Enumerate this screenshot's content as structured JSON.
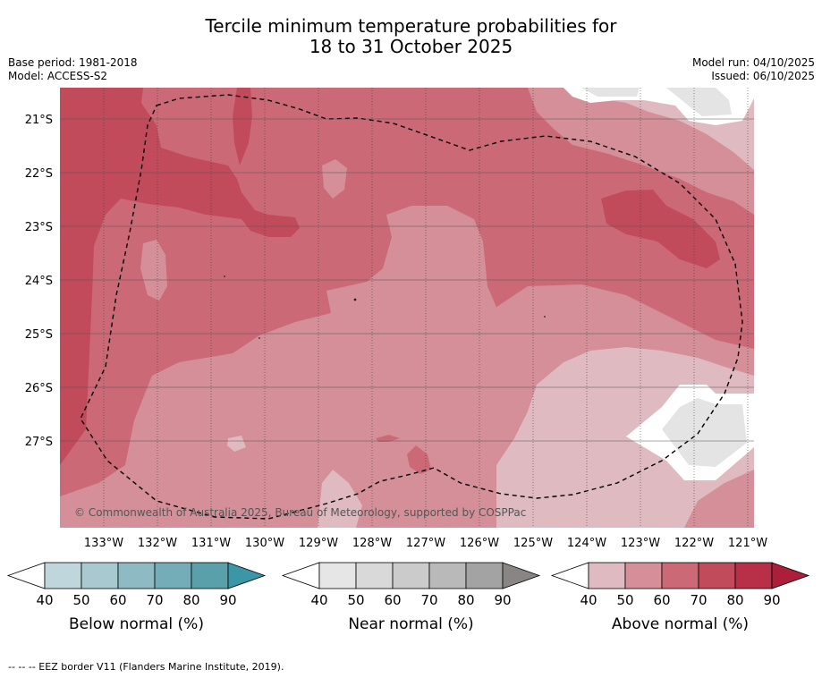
{
  "title": {
    "line1": "Tercile minimum temperature probabilities for",
    "line2": "18 to 31 October 2025"
  },
  "meta": {
    "base_period": "Base period: 1981-2018",
    "model": "Model: ACCESS-S2",
    "model_run": "Model run: 04/10/2025",
    "issued": "Issued: 06/10/2025"
  },
  "map": {
    "lat_labels": [
      "21°S",
      "22°S",
      "23°S",
      "24°S",
      "25°S",
      "26°S",
      "27°S"
    ],
    "lon_labels": [
      "133°W",
      "132°W",
      "131°W",
      "130°W",
      "129°W",
      "128°W",
      "127°W",
      "126°W",
      "125°W",
      "124°W",
      "123°W",
      "122°W",
      "121°W"
    ],
    "copyright": "© Commonwealth of Australia 2025, Bureau of Meteorology, supported by COSPPac",
    "colors": {
      "above_40": "#dfbac0",
      "above_50": "#d48f99",
      "above_60": "#cb6a76",
      "above_70": "#c24b5b",
      "near_40": "#e4e4e4",
      "background": "#ffffff"
    }
  },
  "legends": [
    {
      "label": "Below normal (%)",
      "ticks": [
        "40",
        "50",
        "60",
        "70",
        "80",
        "90"
      ],
      "colors": [
        "#bfd7dc",
        "#a8c9cf",
        "#8ebbc3",
        "#74adb7",
        "#59a0ab",
        "#3b97a6"
      ]
    },
    {
      "label": "Near normal (%)",
      "ticks": [
        "40",
        "50",
        "60",
        "70",
        "80",
        "90"
      ],
      "colors": [
        "#e6e6e6",
        "#d9d9d9",
        "#cbcbcb",
        "#b9b9b9",
        "#a3a3a3",
        "#8a8585"
      ]
    },
    {
      "label": "Above normal (%)",
      "ticks": [
        "40",
        "50",
        "60",
        "70",
        "80",
        "90"
      ],
      "colors": [
        "#dfbac0",
        "#d48f99",
        "#cb6a76",
        "#c24b5b",
        "#b83048",
        "#ac1f3a"
      ]
    }
  ],
  "footer": "--  --  -- EEZ border V11 (Flanders Marine Institute, 2019)."
}
